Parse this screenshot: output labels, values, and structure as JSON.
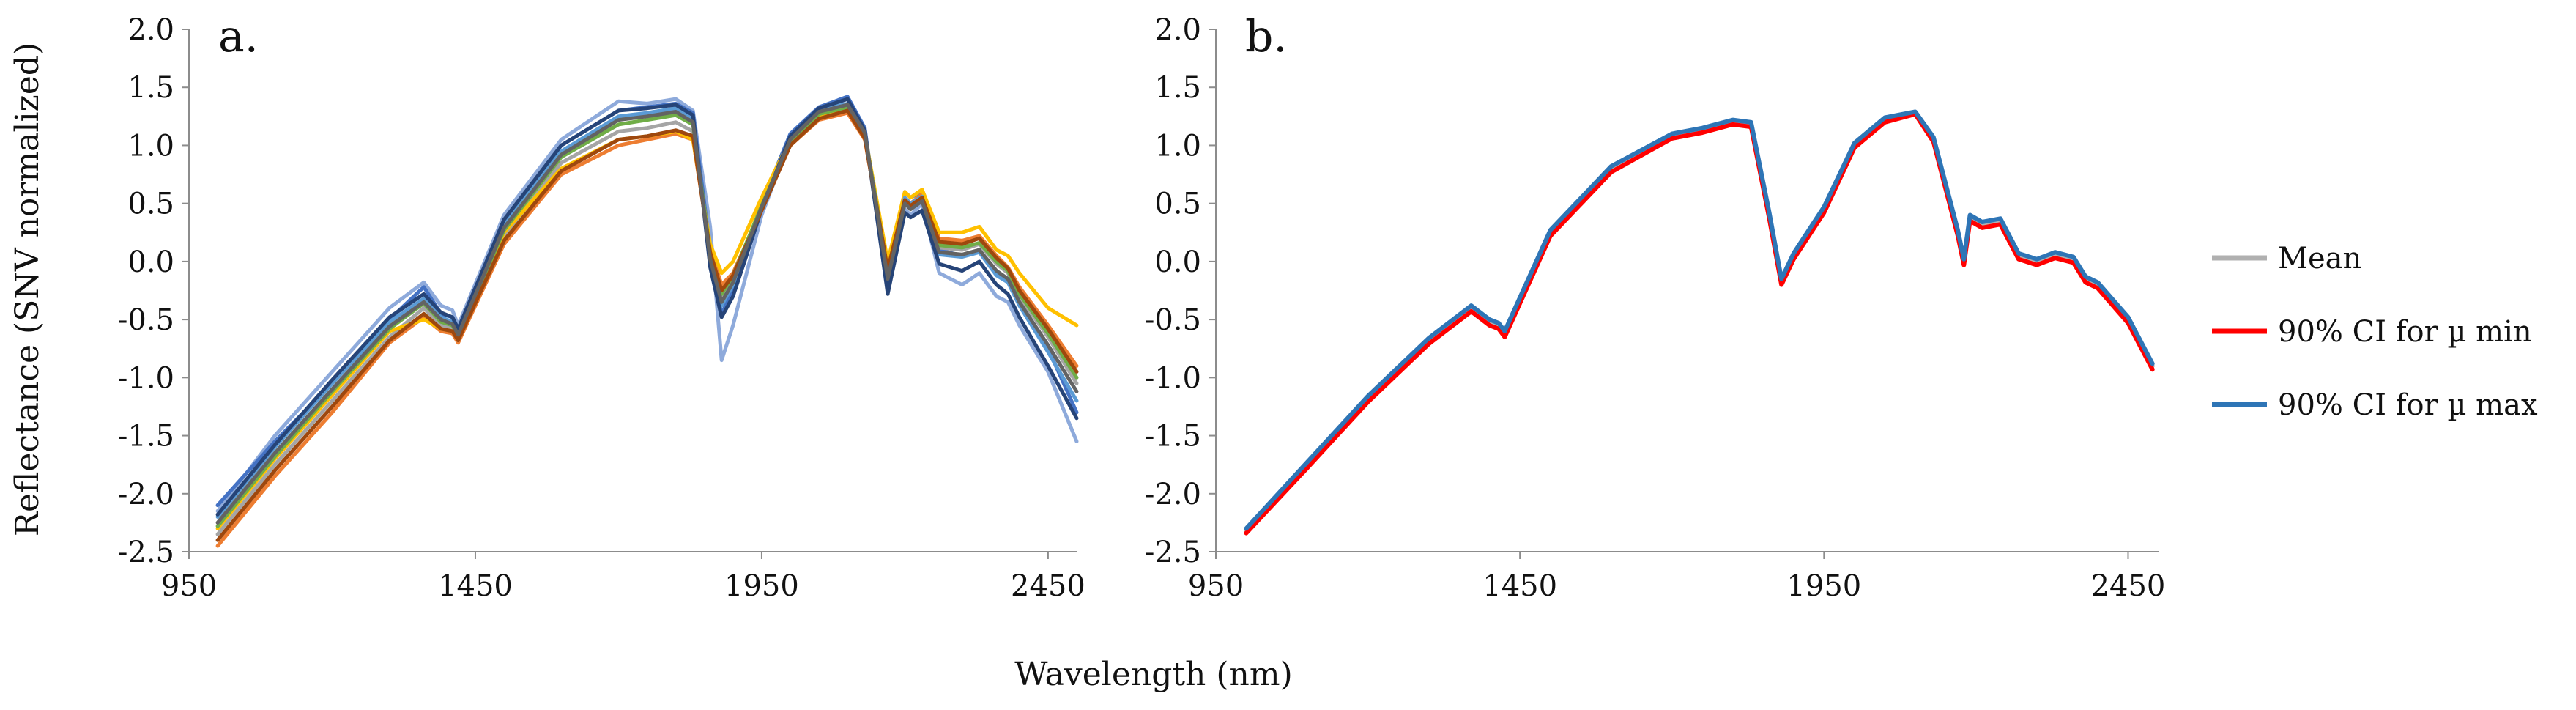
{
  "figure": {
    "xlabel": "Wavelength (nm)",
    "ylabel": "Reflectance (SNV normalized)"
  },
  "chart_data": [
    {
      "type": "line",
      "panel_label": "a.",
      "xlim": [
        950,
        2500
      ],
      "ylim": [
        -2.5,
        2.0
      ],
      "x_ticks": [
        950,
        1450,
        1950,
        2450
      ],
      "x_tick_labels": [
        "950",
        "1450",
        "1950",
        "2450"
      ],
      "y_ticks": [
        2.0,
        1.5,
        1.0,
        0.5,
        0.0,
        -0.5,
        -1.0,
        -1.5,
        -2.0,
        -2.5
      ],
      "y_tick_labels": [
        "2.0",
        "1.5",
        "1.0",
        "0.5",
        "0.0",
        "-0.5",
        "-1.0",
        "-1.5",
        "-2.0",
        "-2.5"
      ],
      "grid": false,
      "legend": "none",
      "x": [
        1000,
        1100,
        1200,
        1300,
        1360,
        1390,
        1410,
        1420,
        1500,
        1600,
        1700,
        1750,
        1800,
        1830,
        1860,
        1880,
        1900,
        1950,
        2000,
        2050,
        2100,
        2130,
        2170,
        2200,
        2210,
        2230,
        2260,
        2300,
        2330,
        2360,
        2380,
        2400,
        2450,
        2500
      ],
      "series_colors": [
        "#8eaadb",
        "#4472c4",
        "#ed7d31",
        "#a5a5a5",
        "#ffc000",
        "#5b9bd5",
        "#70ad47",
        "#264478",
        "#9e480e",
        "#636363",
        "#997300",
        "#255e91",
        "#43682b",
        "#f4b183",
        "#2e75b6",
        "#c00000",
        "#7030a0",
        "#00b0f0",
        "#bf9000",
        "#548235"
      ],
      "series": [
        {
          "values": [
            -2.15,
            -1.5,
            -0.95,
            -0.4,
            -0.18,
            -0.38,
            -0.42,
            -0.55,
            0.4,
            1.05,
            1.38,
            1.36,
            1.4,
            1.3,
            0.3,
            -0.85,
            -0.55,
            0.4,
            1.05,
            1.3,
            1.4,
            1.1,
            -0.2,
            0.45,
            0.4,
            0.5,
            -0.1,
            -0.2,
            -0.1,
            -0.3,
            -0.35,
            -0.55,
            -0.95,
            -1.55
          ]
        },
        {
          "values": [
            -2.1,
            -1.55,
            -1.05,
            -0.5,
            -0.22,
            -0.45,
            -0.48,
            -0.6,
            0.35,
            1.0,
            1.3,
            1.33,
            1.36,
            1.28,
            0.1,
            -0.45,
            -0.25,
            0.5,
            1.1,
            1.33,
            1.42,
            1.15,
            -0.25,
            0.6,
            0.55,
            0.6,
            0.1,
            0.05,
            0.1,
            -0.1,
            -0.15,
            -0.35,
            -0.75,
            -1.3
          ]
        },
        {
          "values": [
            -2.45,
            -1.85,
            -1.3,
            -0.7,
            -0.48,
            -0.6,
            -0.62,
            -0.7,
            0.15,
            0.75,
            1.0,
            1.05,
            1.1,
            1.05,
            0.1,
            -0.2,
            -0.1,
            0.45,
            1.0,
            1.22,
            1.28,
            1.05,
            -0.05,
            0.55,
            0.5,
            0.58,
            0.2,
            0.18,
            0.22,
            0.05,
            -0.05,
            -0.22,
            -0.55,
            -0.9
          ]
        },
        {
          "values": [
            -2.35,
            -1.75,
            -1.2,
            -0.65,
            -0.4,
            -0.55,
            -0.58,
            -0.68,
            0.22,
            0.85,
            1.12,
            1.15,
            1.2,
            1.12,
            0.05,
            -0.3,
            -0.15,
            0.45,
            1.02,
            1.25,
            1.32,
            1.08,
            -0.1,
            0.5,
            0.45,
            0.52,
            0.12,
            0.1,
            0.15,
            -0.02,
            -0.1,
            -0.3,
            -0.65,
            -1.05
          ]
        },
        {
          "values": [
            -2.3,
            -1.7,
            -1.15,
            -0.6,
            -0.5,
            -0.58,
            -0.6,
            -0.65,
            0.25,
            0.8,
            1.05,
            1.08,
            1.12,
            1.05,
            0.15,
            -0.1,
            0.0,
            0.55,
            1.05,
            1.25,
            1.3,
            1.1,
            0.0,
            0.6,
            0.55,
            0.62,
            0.25,
            0.25,
            0.3,
            0.1,
            0.05,
            -0.1,
            -0.4,
            -0.55
          ]
        },
        {
          "values": [
            -2.2,
            -1.6,
            -1.05,
            -0.52,
            -0.32,
            -0.48,
            -0.52,
            -0.62,
            0.32,
            0.95,
            1.25,
            1.28,
            1.32,
            1.22,
            0.0,
            -0.38,
            -0.2,
            0.47,
            1.06,
            1.3,
            1.36,
            1.12,
            -0.18,
            0.55,
            0.5,
            0.56,
            0.06,
            0.04,
            0.08,
            -0.12,
            -0.18,
            -0.38,
            -0.78,
            -1.2
          ]
        },
        {
          "values": [
            -2.28,
            -1.68,
            -1.12,
            -0.58,
            -0.36,
            -0.52,
            -0.55,
            -0.64,
            0.27,
            0.9,
            1.18,
            1.22,
            1.26,
            1.18,
            0.08,
            -0.28,
            -0.12,
            0.48,
            1.04,
            1.27,
            1.33,
            1.1,
            -0.08,
            0.52,
            0.47,
            0.54,
            0.14,
            0.12,
            0.16,
            0.0,
            -0.08,
            -0.28,
            -0.62,
            -1.0
          ]
        },
        {
          "values": [
            -2.18,
            -1.58,
            -1.02,
            -0.48,
            -0.28,
            -0.44,
            -0.48,
            -0.58,
            0.36,
            1.0,
            1.3,
            1.32,
            1.35,
            1.26,
            -0.05,
            -0.48,
            -0.3,
            0.45,
            1.08,
            1.32,
            1.4,
            1.13,
            -0.28,
            0.42,
            0.38,
            0.44,
            -0.02,
            -0.08,
            0.0,
            -0.2,
            -0.28,
            -0.48,
            -0.9,
            -1.35
          ]
        },
        {
          "values": [
            -2.4,
            -1.8,
            -1.25,
            -0.68,
            -0.45,
            -0.58,
            -0.6,
            -0.68,
            0.18,
            0.78,
            1.05,
            1.08,
            1.13,
            1.08,
            0.08,
            -0.25,
            -0.12,
            0.44,
            1.0,
            1.23,
            1.3,
            1.06,
            -0.07,
            0.53,
            0.48,
            0.55,
            0.17,
            0.15,
            0.2,
            0.03,
            -0.06,
            -0.25,
            -0.58,
            -0.95
          ]
        },
        {
          "values": [
            -2.25,
            -1.65,
            -1.1,
            -0.56,
            -0.35,
            -0.5,
            -0.54,
            -0.63,
            0.29,
            0.92,
            1.22,
            1.25,
            1.29,
            1.2,
            0.02,
            -0.35,
            -0.18,
            0.47,
            1.05,
            1.29,
            1.35,
            1.11,
            -0.15,
            0.5,
            0.45,
            0.52,
            0.08,
            0.06,
            0.1,
            -0.08,
            -0.15,
            -0.35,
            -0.72,
            -1.12
          ]
        }
      ]
    },
    {
      "type": "line",
      "panel_label": "b.",
      "xlim": [
        950,
        2500
      ],
      "ylim": [
        -2.5,
        2.0
      ],
      "x_ticks": [
        950,
        1450,
        1950,
        2450
      ],
      "x_tick_labels": [
        "950",
        "1450",
        "1950",
        "2450"
      ],
      "y_ticks": [
        2.0,
        1.5,
        1.0,
        0.5,
        0.0,
        -0.5,
        -1.0,
        -1.5,
        -2.0,
        -2.5
      ],
      "y_tick_labels": [
        "2.0",
        "1.5",
        "1.0",
        "0.5",
        "0.0",
        "-0.5",
        "-1.0",
        "-1.5",
        "-2.0",
        "-2.5"
      ],
      "grid": false,
      "legend": "right",
      "x": [
        1000,
        1100,
        1200,
        1300,
        1370,
        1400,
        1415,
        1425,
        1500,
        1600,
        1700,
        1750,
        1800,
        1830,
        1860,
        1880,
        1900,
        1950,
        2000,
        2050,
        2100,
        2130,
        2170,
        2180,
        2190,
        2210,
        2240,
        2270,
        2300,
        2330,
        2360,
        2380,
        2400,
        2450,
        2490
      ],
      "series": [
        {
          "name": "Mean",
          "color": "#b0b0b0",
          "values": [
            -2.32,
            -1.75,
            -1.18,
            -0.68,
            -0.4,
            -0.52,
            -0.55,
            -0.62,
            0.25,
            0.8,
            1.08,
            1.13,
            1.2,
            1.18,
            0.4,
            -0.17,
            0.05,
            0.45,
            1.0,
            1.22,
            1.28,
            1.05,
            0.25,
            0.0,
            0.38,
            0.32,
            0.35,
            0.05,
            0.0,
            0.06,
            0.02,
            -0.15,
            -0.2,
            -0.5,
            -0.9
          ]
        },
        {
          "name": "90% CI for µ min",
          "color": "#ff0000",
          "values": [
            -2.34,
            -1.78,
            -1.21,
            -0.71,
            -0.43,
            -0.55,
            -0.58,
            -0.65,
            0.22,
            0.77,
            1.06,
            1.11,
            1.18,
            1.16,
            0.37,
            -0.2,
            0.02,
            0.42,
            0.98,
            1.2,
            1.27,
            1.03,
            0.22,
            -0.03,
            0.35,
            0.29,
            0.32,
            0.02,
            -0.03,
            0.03,
            -0.01,
            -0.18,
            -0.23,
            -0.53,
            -0.93
          ]
        },
        {
          "name": "90% CI for µ max",
          "color": "#2e75b6",
          "values": [
            -2.3,
            -1.73,
            -1.16,
            -0.66,
            -0.38,
            -0.5,
            -0.53,
            -0.6,
            0.27,
            0.82,
            1.1,
            1.15,
            1.22,
            1.2,
            0.42,
            -0.15,
            0.07,
            0.47,
            1.02,
            1.24,
            1.29,
            1.07,
            0.27,
            0.02,
            0.4,
            0.34,
            0.37,
            0.07,
            0.02,
            0.08,
            0.04,
            -0.13,
            -0.18,
            -0.48,
            -0.88
          ]
        }
      ]
    }
  ]
}
